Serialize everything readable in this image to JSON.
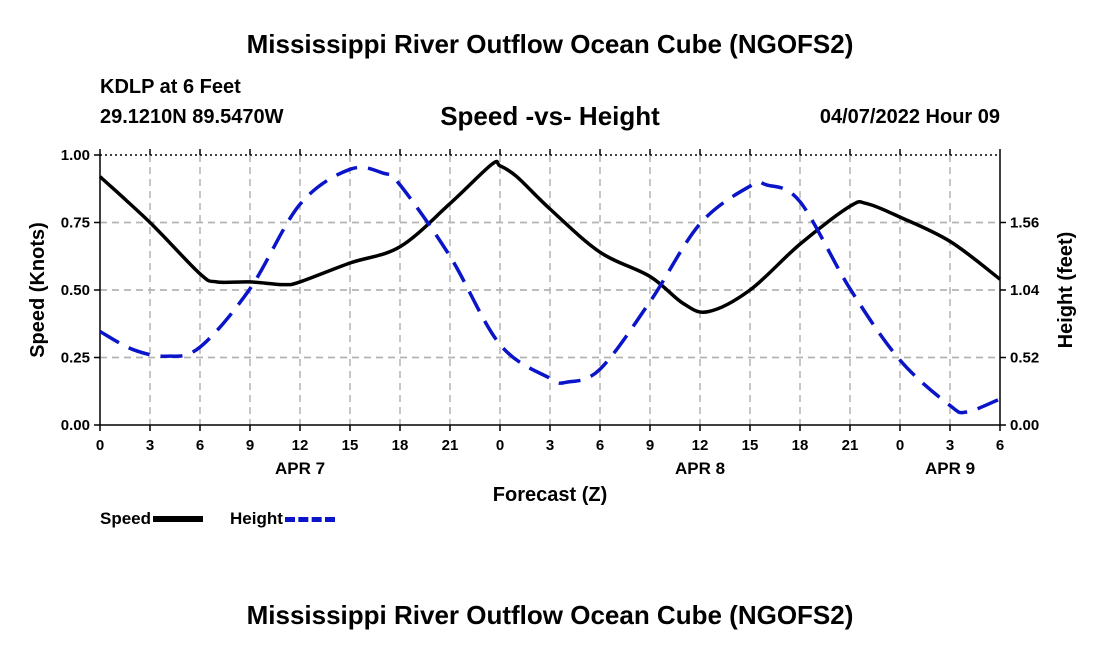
{
  "header": {
    "title": "Mississippi River Outflow Ocean Cube (NGOFS2)",
    "station": "KDLP at 6 Feet",
    "coordinates": "29.1210N  89.5470W",
    "subtitle": "Speed -vs- Height",
    "datetime": "04/07/2022 Hour 09"
  },
  "footer": {
    "title": "Mississippi River Outflow Ocean Cube (NGOFS2)"
  },
  "legend": {
    "speed_label": "Speed",
    "height_label": "Height"
  },
  "colors": {
    "speed": "#000000",
    "height": "#0a14c8",
    "grid": "#b4b4b4"
  },
  "chart_data": {
    "type": "line",
    "title": "Speed -vs- Height",
    "xlabel": "Forecast (Z)",
    "ylabel": "Speed (Knots)",
    "y2label": "Height (feet)",
    "xlim": [
      0,
      54
    ],
    "ylim": [
      0,
      1
    ],
    "y2lim": [
      0,
      2.08
    ],
    "x_ticks": [
      0,
      3,
      6,
      9,
      12,
      15,
      18,
      21,
      24,
      27,
      30,
      33,
      36,
      39,
      42,
      45,
      48,
      51,
      54
    ],
    "x_tick_labels": [
      "0",
      "3",
      "6",
      "9",
      "12",
      "15",
      "18",
      "21",
      "0",
      "3",
      "6",
      "9",
      "12",
      "15",
      "18",
      "21",
      "0",
      "3",
      "6"
    ],
    "y_ticks": [
      0,
      0.25,
      0.5,
      0.75,
      1
    ],
    "y_tick_labels": [
      "0.00",
      "0.25",
      "0.50",
      "0.75",
      "1.00"
    ],
    "y2_ticks": [
      0,
      0.52,
      1.04,
      1.56
    ],
    "y2_tick_labels": [
      "0.00",
      "0.52",
      "1.04",
      "1.56"
    ],
    "day_labels": [
      {
        "x": 12,
        "label": "APR 7"
      },
      {
        "x": 36,
        "label": "APR 8"
      },
      {
        "x": 51,
        "label": "APR 9"
      }
    ],
    "series": [
      {
        "name": "Speed",
        "axis": "left",
        "style": "solid",
        "x": [
          0,
          3,
          6,
          7,
          9,
          11,
          12,
          15,
          18,
          21,
          23.5,
          24,
          25,
          27,
          30,
          33,
          35,
          36.5,
          39,
          42,
          45,
          46,
          48,
          51,
          54
        ],
        "values": [
          0.92,
          0.75,
          0.56,
          0.53,
          0.53,
          0.52,
          0.53,
          0.6,
          0.66,
          0.82,
          0.965,
          0.96,
          0.92,
          0.8,
          0.64,
          0.55,
          0.45,
          0.42,
          0.5,
          0.67,
          0.81,
          0.82,
          0.77,
          0.68,
          0.54
        ]
      },
      {
        "name": "Height",
        "axis": "right",
        "style": "dashed",
        "x": [
          0,
          2,
          4,
          6,
          9,
          12,
          15,
          17,
          18,
          21,
          24,
          27,
          28,
          30,
          33,
          36,
          39,
          40,
          42,
          45,
          48,
          51,
          52,
          54
        ],
        "values": [
          0.72,
          0.58,
          0.53,
          0.6,
          1.05,
          1.7,
          1.97,
          1.94,
          1.85,
          1.3,
          0.62,
          0.36,
          0.33,
          0.43,
          0.95,
          1.55,
          1.84,
          1.85,
          1.72,
          1.05,
          0.5,
          0.15,
          0.1,
          0.2
        ]
      }
    ]
  }
}
